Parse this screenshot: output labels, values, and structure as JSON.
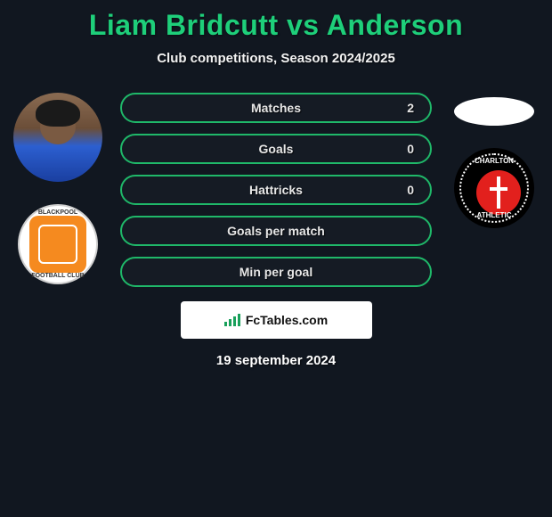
{
  "title": "Liam Bridcutt vs Anderson",
  "subtitle": "Club competitions, Season 2024/2025",
  "stats": [
    {
      "label": "Matches",
      "value_right": "2"
    },
    {
      "label": "Goals",
      "value_right": "0"
    },
    {
      "label": "Hattricks",
      "value_right": "0"
    },
    {
      "label": "Goals per match",
      "value_right": ""
    },
    {
      "label": "Min per goal",
      "value_right": ""
    }
  ],
  "left_player_name": "Liam Bridcutt",
  "left_club_name": "Blackpool",
  "right_player_name": "Anderson",
  "right_club_name": "Charlton Athletic",
  "blackpool_label_top": "BLACKPOOL",
  "blackpool_label_bottom": "FOOTBALL CLUB",
  "charlton_label_top": "CHARLTON",
  "charlton_label_bottom": "ATHLETIC",
  "footer_brand": "FcTables.com",
  "footer_date": "19 september 2024",
  "colors": {
    "accent": "#1ecf7a",
    "pill_border": "#1fb869",
    "background": "#111720",
    "charlton_red": "#e2201d",
    "blackpool_orange": "#f58a1f"
  }
}
